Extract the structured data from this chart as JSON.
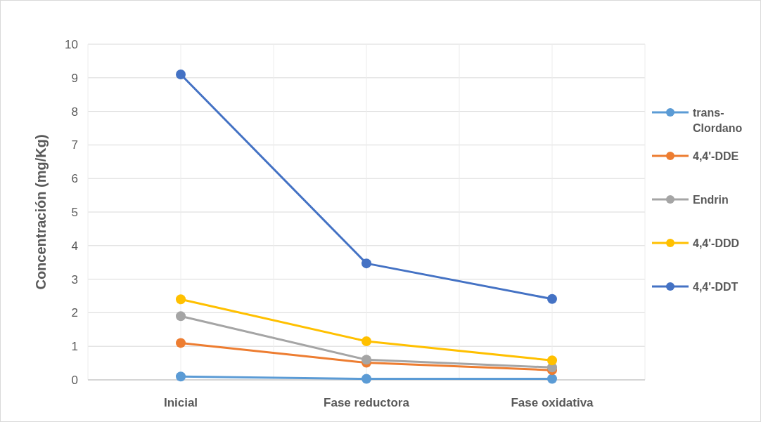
{
  "chart_data": {
    "type": "line",
    "ylabel": "Concentración (mg/Kg)",
    "categories": [
      "Inicial",
      "Fase reductora",
      "Fase oxidativa"
    ],
    "series": [
      {
        "name": "trans-Clordano",
        "color": "#5b9bd5",
        "values": [
          0.1,
          0.03,
          0.03
        ]
      },
      {
        "name": "4,4'-DDE",
        "color": "#ed7d31",
        "values": [
          1.1,
          0.51,
          0.29
        ]
      },
      {
        "name": "Endrin",
        "color": "#a5a5a5",
        "values": [
          1.9,
          0.6,
          0.37
        ]
      },
      {
        "name": "4,4'-DDD",
        "color": "#ffc000",
        "values": [
          2.4,
          1.15,
          0.58
        ]
      },
      {
        "name": "4,4'-DDT",
        "color": "#4472c4",
        "values": [
          9.1,
          3.47,
          2.41
        ]
      }
    ],
    "ylim": [
      0,
      10
    ],
    "yticks": [
      0,
      1,
      2,
      3,
      4,
      5,
      6,
      7,
      8,
      9,
      10
    ],
    "grid": true,
    "legend": "right",
    "marker": "circle",
    "line_style": "solid"
  }
}
